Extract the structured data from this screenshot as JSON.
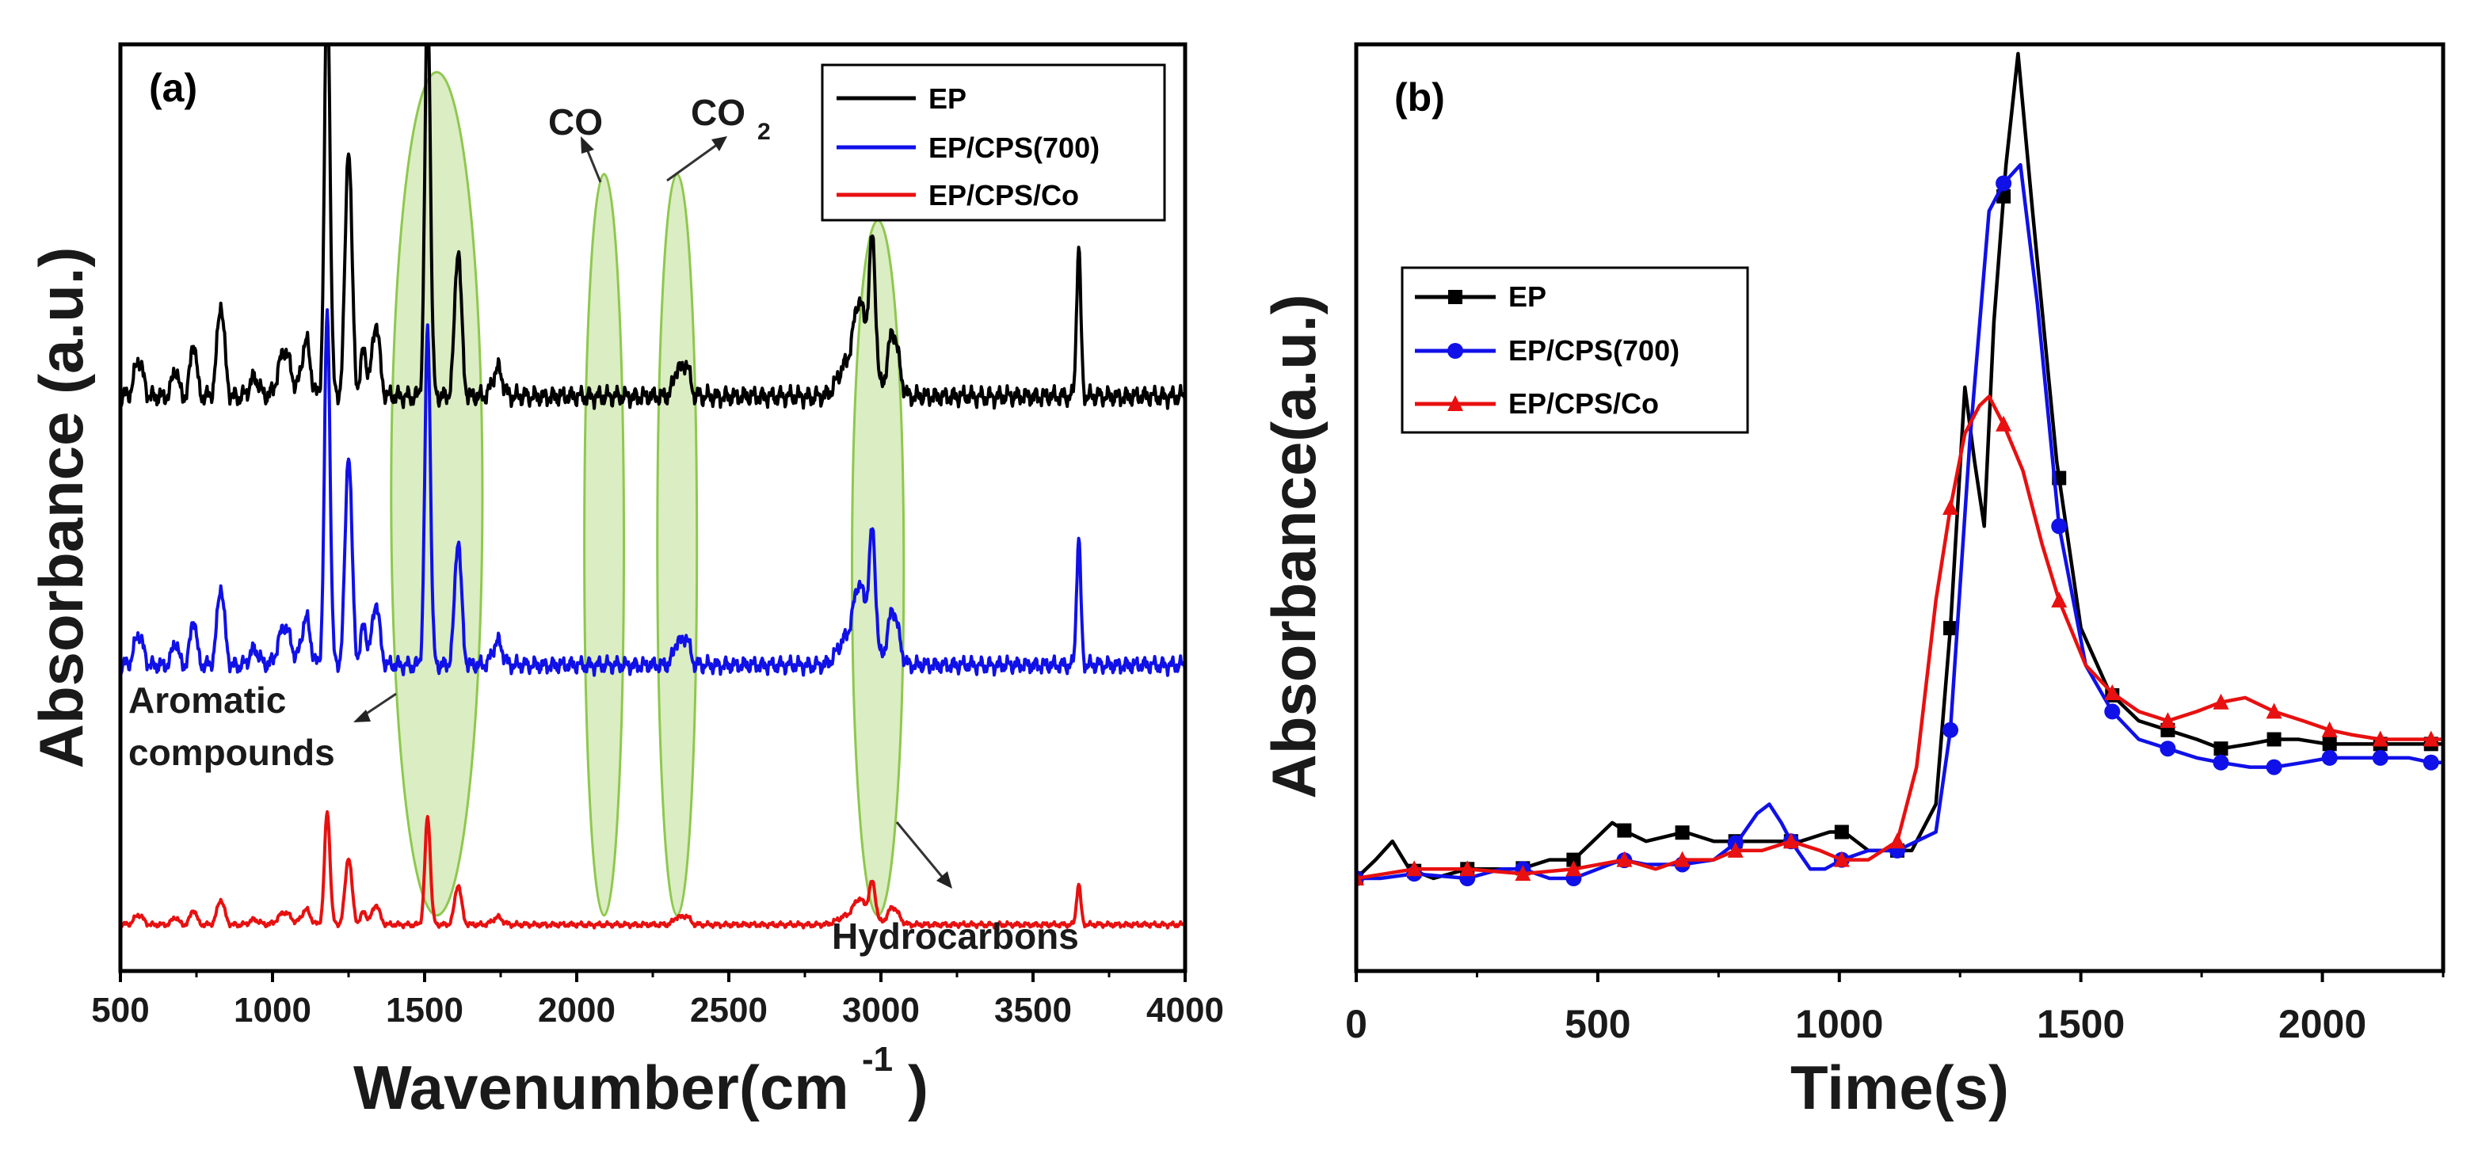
{
  "chart_data": [
    {
      "panel": "(a)",
      "type": "line",
      "xlabel": "Wavenumber(cm",
      "xlabel_sup": "-1",
      "xlabel_close": ")",
      "ylabel": "Absorbance (a.u.)",
      "xlim": [
        500,
        4000
      ],
      "xticks": [
        "500",
        "1000",
        "1500",
        "2000",
        "2500",
        "3000",
        "3500",
        "4000"
      ],
      "yticks": false,
      "series": [
        {
          "name": "EP",
          "color": "#000000",
          "offset": 0.62,
          "scale": 1.0
        },
        {
          "name": "EP/CPS(700)",
          "color": "#1010e8",
          "offset": 0.33,
          "scale": 0.85
        },
        {
          "name": "EP/CPS/Co",
          "color": "#e81010",
          "offset": 0.05,
          "scale": 0.27
        }
      ],
      "peaks": [
        {
          "x": 560,
          "h": 0.04,
          "w": 14
        },
        {
          "x": 680,
          "h": 0.03,
          "w": 10
        },
        {
          "x": 740,
          "h": 0.06,
          "w": 10
        },
        {
          "x": 830,
          "h": 0.1,
          "w": 12
        },
        {
          "x": 940,
          "h": 0.02,
          "w": 15
        },
        {
          "x": 1040,
          "h": 0.05,
          "w": 20
        },
        {
          "x": 1110,
          "h": 0.06,
          "w": 14
        },
        {
          "x": 1180,
          "h": 0.45,
          "w": 9
        },
        {
          "x": 1250,
          "h": 0.27,
          "w": 11
        },
        {
          "x": 1300,
          "h": 0.05,
          "w": 10
        },
        {
          "x": 1340,
          "h": 0.08,
          "w": 12
        },
        {
          "x": 1510,
          "h": 0.43,
          "w": 9
        },
        {
          "x": 1610,
          "h": 0.16,
          "w": 11
        },
        {
          "x": 1740,
          "h": 0.03,
          "w": 16
        },
        {
          "x": 2330,
          "h": 0.03,
          "w": 12
        },
        {
          "x": 2360,
          "h": 0.035,
          "w": 12
        },
        {
          "x": 2880,
          "h": 0.03,
          "w": 25
        },
        {
          "x": 2930,
          "h": 0.1,
          "w": 20
        },
        {
          "x": 2972,
          "h": 0.16,
          "w": 11
        },
        {
          "x": 3040,
          "h": 0.07,
          "w": 18
        },
        {
          "x": 3650,
          "h": 0.16,
          "w": 7
        }
      ],
      "ellipses": [
        {
          "center": 1540,
          "halfwidth": 150,
          "top": 0.97,
          "bottom": 0.06
        },
        {
          "center": 2090,
          "halfwidth": 65,
          "top": 0.86,
          "bottom": 0.06
        },
        {
          "center": 2330,
          "halfwidth": 65,
          "top": 0.86,
          "bottom": 0.06
        },
        {
          "center": 2990,
          "halfwidth": 85,
          "top": 0.81,
          "bottom": 0.06
        }
      ],
      "annotations": {
        "co": "CO",
        "co2_main": "CO",
        "co2_sub": "2",
        "aromatic_line1": "Aromatic",
        "aromatic_line2": "compounds",
        "hydrocarbons": "Hydrocarbons"
      },
      "legend_position": "top-right"
    },
    {
      "panel": "(b)",
      "type": "line",
      "xlabel": "Time(s)",
      "ylabel": "Absorbance(a.u.)",
      "xlim": [
        0,
        2250
      ],
      "ylim": [
        0,
        1
      ],
      "xticks": [
        "0",
        "500",
        "1000",
        "1500",
        "2000"
      ],
      "yticks": false,
      "series": [
        {
          "name": "EP",
          "color": "#000000",
          "marker": "square",
          "x": [
            0,
            40,
            75,
            110,
            160,
            230,
            300,
            340,
            400,
            450,
            490,
            530,
            560,
            600,
            680,
            740,
            800,
            860,
            920,
            980,
            1010,
            1060,
            1110,
            1150,
            1200,
            1230,
            1260,
            1280,
            1300,
            1320,
            1345,
            1370,
            1400,
            1450,
            1500,
            1560,
            1620,
            1680,
            1740,
            1790,
            1850,
            1900,
            1950,
            2010,
            2060,
            2120,
            2170,
            2220,
            2250
          ],
          "y": [
            0.1,
            0.12,
            0.14,
            0.11,
            0.1,
            0.11,
            0.11,
            0.11,
            0.12,
            0.12,
            0.14,
            0.16,
            0.15,
            0.14,
            0.15,
            0.14,
            0.14,
            0.14,
            0.14,
            0.15,
            0.15,
            0.13,
            0.13,
            0.13,
            0.18,
            0.37,
            0.63,
            0.55,
            0.48,
            0.7,
            0.87,
            0.99,
            0.82,
            0.55,
            0.37,
            0.3,
            0.27,
            0.26,
            0.25,
            0.24,
            0.245,
            0.25,
            0.25,
            0.245,
            0.245,
            0.245,
            0.245,
            0.245,
            0.245
          ],
          "marker_x": [
            0,
            120,
            230,
            345,
            450,
            555,
            675,
            785,
            900,
            1005,
            1120,
            1230,
            1340,
            1455,
            1565,
            1680,
            1790,
            1900,
            2015,
            2120,
            2225
          ]
        },
        {
          "name": "EP/CPS(700)",
          "color": "#1010e8",
          "marker": "circle",
          "x": [
            0,
            50,
            120,
            230,
            300,
            345,
            400,
            450,
            500,
            550,
            600,
            675,
            740,
            790,
            830,
            855,
            880,
            900,
            940,
            970,
            1005,
            1060,
            1120,
            1160,
            1200,
            1230,
            1270,
            1310,
            1340,
            1375,
            1410,
            1455,
            1510,
            1565,
            1620,
            1680,
            1740,
            1790,
            1850,
            1900,
            1960,
            2015,
            2060,
            2120,
            2180,
            2225,
            2250
          ],
          "y": [
            0.1,
            0.1,
            0.105,
            0.1,
            0.11,
            0.11,
            0.1,
            0.1,
            0.11,
            0.12,
            0.115,
            0.115,
            0.12,
            0.14,
            0.17,
            0.18,
            0.16,
            0.14,
            0.11,
            0.11,
            0.12,
            0.13,
            0.13,
            0.14,
            0.15,
            0.26,
            0.57,
            0.82,
            0.85,
            0.87,
            0.72,
            0.48,
            0.33,
            0.28,
            0.25,
            0.24,
            0.23,
            0.225,
            0.22,
            0.22,
            0.225,
            0.23,
            0.23,
            0.23,
            0.23,
            0.225,
            0.225
          ],
          "marker_x": [
            0,
            120,
            230,
            345,
            450,
            555,
            675,
            785,
            900,
            1005,
            1120,
            1230,
            1340,
            1455,
            1565,
            1680,
            1790,
            1900,
            2015,
            2120,
            2225
          ]
        },
        {
          "name": "EP/CPS/Co",
          "color": "#e81010",
          "marker": "triangle",
          "x": [
            0,
            60,
            120,
            230,
            345,
            450,
            555,
            620,
            675,
            740,
            785,
            840,
            900,
            960,
            1005,
            1060,
            1120,
            1160,
            1200,
            1230,
            1260,
            1290,
            1310,
            1340,
            1380,
            1420,
            1455,
            1510,
            1565,
            1620,
            1680,
            1740,
            1790,
            1840,
            1900,
            1960,
            2015,
            2060,
            2120,
            2170,
            2225,
            2250
          ],
          "y": [
            0.1,
            0.105,
            0.11,
            0.11,
            0.105,
            0.11,
            0.12,
            0.11,
            0.12,
            0.12,
            0.13,
            0.13,
            0.14,
            0.13,
            0.12,
            0.12,
            0.14,
            0.22,
            0.4,
            0.5,
            0.58,
            0.61,
            0.62,
            0.59,
            0.54,
            0.46,
            0.4,
            0.33,
            0.3,
            0.28,
            0.27,
            0.28,
            0.29,
            0.295,
            0.28,
            0.27,
            0.26,
            0.255,
            0.25,
            0.25,
            0.25,
            0.25
          ],
          "marker_x": [
            0,
            120,
            230,
            345,
            450,
            555,
            675,
            785,
            900,
            1005,
            1120,
            1230,
            1340,
            1455,
            1565,
            1680,
            1790,
            1900,
            2015,
            2120,
            2225
          ]
        }
      ],
      "legend_position": "top-left"
    }
  ]
}
